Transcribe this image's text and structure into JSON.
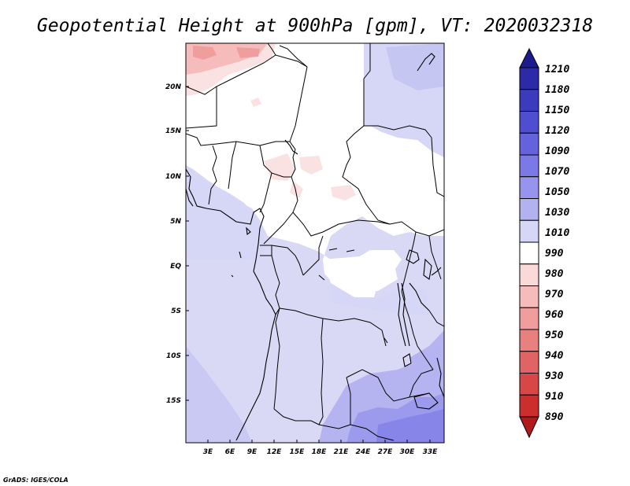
{
  "title": "Geopotential Height at 900hPa [gpm], VT: 2020032318",
  "credit": "GrADS: IGES/COLA",
  "map": {
    "lat_labels": [
      "20N",
      "15N",
      "10N",
      "5N",
      "EQ",
      "5S",
      "10S",
      "15S"
    ],
    "lon_labels": [
      "3E",
      "6E",
      "9E",
      "12E",
      "15E",
      "18E",
      "21E",
      "24E",
      "27E",
      "30E",
      "33E"
    ]
  },
  "colorbar": {
    "levels": [
      "1210",
      "1180",
      "1150",
      "1120",
      "1090",
      "1070",
      "1050",
      "1030",
      "1010",
      "990",
      "980",
      "970",
      "960",
      "950",
      "940",
      "930",
      "910",
      "890"
    ],
    "colors": [
      "#1e1c8c",
      "#2c2aa6",
      "#3d3bbd",
      "#4f4dd0",
      "#6462dd",
      "#7b79e6",
      "#9694ec",
      "#b3b2f0",
      "#d6d6f6",
      "#ffffff",
      "#fbd9d9",
      "#f6bcbc",
      "#ef9d9d",
      "#e88080",
      "#e06464",
      "#d84747",
      "#cc2e2e",
      "#b11a1a"
    ]
  }
}
